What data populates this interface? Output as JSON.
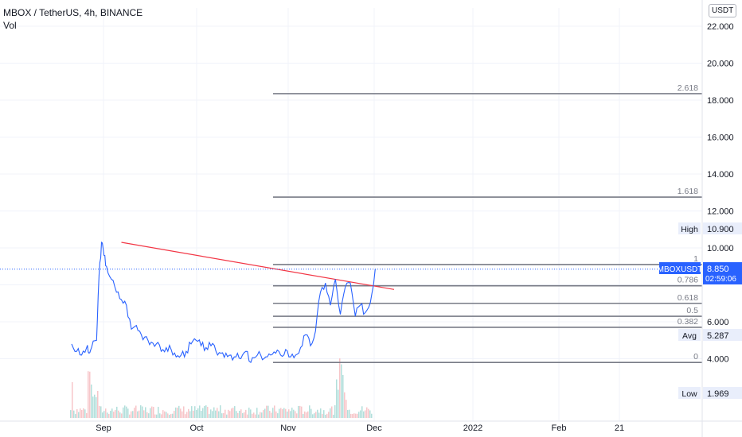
{
  "header": {
    "title": "MBOX / TetherUS, 4h, BINANCE",
    "indicator": "Vol"
  },
  "currency_button": "USDT",
  "colors": {
    "price_line": "#2962ff",
    "trendline": "#f23645",
    "fib_line": "#787b86",
    "current_price": "#2962ff",
    "volume_up": "#b2dfdb",
    "volume_down": "#f7c6c9"
  },
  "chart_data": {
    "type": "line",
    "title": "MBOX / TetherUS, 4h, BINANCE",
    "xlabel": "",
    "ylabel": "",
    "x_ticks": [
      "Sep",
      "Oct",
      "Nov",
      "Dec",
      "2022",
      "Feb",
      "21"
    ],
    "y_ticks": [
      "4.000",
      "6.000",
      "10.000",
      "12.000",
      "14.000",
      "16.000",
      "18.000",
      "20.000",
      "22.000"
    ],
    "ylim": [
      1.0,
      23.0
    ],
    "grid": true,
    "series": [
      {
        "values": [
          [
            0,
            4.8
          ],
          [
            1,
            4.4
          ],
          [
            2,
            4.2
          ],
          [
            3,
            4.6
          ],
          [
            3.5,
            4.3
          ],
          [
            4,
            4.6
          ],
          [
            5,
            5.0
          ],
          [
            5.5,
            8.5
          ],
          [
            6,
            10.3
          ],
          [
            6.5,
            9.6
          ],
          [
            7,
            9.0
          ],
          [
            8,
            8.3
          ],
          [
            9,
            7.6
          ],
          [
            10,
            7.2
          ],
          [
            11,
            6.9
          ],
          [
            12,
            5.6
          ],
          [
            13,
            5.8
          ],
          [
            14,
            5.3
          ],
          [
            15,
            5.2
          ],
          [
            16,
            4.9
          ],
          [
            17,
            4.8
          ],
          [
            18,
            4.4
          ],
          [
            19,
            4.6
          ],
          [
            20,
            4.5
          ],
          [
            21,
            4.1
          ],
          [
            22,
            4.2
          ],
          [
            23,
            4.4
          ],
          [
            24,
            4.8
          ],
          [
            25,
            5.0
          ],
          [
            26,
            4.7
          ],
          [
            27,
            4.6
          ],
          [
            28,
            4.7
          ],
          [
            29,
            4.4
          ],
          [
            30,
            4.3
          ],
          [
            31,
            4.3
          ],
          [
            32,
            4.2
          ],
          [
            33,
            4.1
          ],
          [
            34,
            4.0
          ],
          [
            35,
            4.4
          ],
          [
            36,
            3.8
          ],
          [
            37,
            4.1
          ],
          [
            38,
            4.2
          ],
          [
            39,
            4.1
          ],
          [
            40,
            4.2
          ],
          [
            41,
            4.3
          ],
          [
            42,
            4.2
          ],
          [
            43,
            4.5
          ],
          [
            44,
            4.1
          ],
          [
            45,
            4.2
          ],
          [
            46,
            4.6
          ],
          [
            47,
            5.3
          ],
          [
            48,
            4.7
          ],
          [
            49,
            5.5
          ],
          [
            50,
            7.6
          ],
          [
            51,
            8.1
          ],
          [
            52,
            6.9
          ],
          [
            53,
            8.3
          ],
          [
            54,
            6.4
          ],
          [
            55,
            7.9
          ],
          [
            56,
            8.1
          ],
          [
            57,
            6.3
          ],
          [
            58,
            6.9
          ],
          [
            59,
            6.5
          ],
          [
            60,
            7.0
          ],
          [
            61,
            8.85
          ]
        ]
      }
    ],
    "trendline": {
      "from": [
        6,
        10.3
      ],
      "to": [
        64,
        7.75
      ]
    },
    "fibonacci_levels": [
      {
        "label": "0",
        "value": 3.8
      },
      {
        "label": "0.382",
        "value": 5.7
      },
      {
        "label": "0.5",
        "value": 6.3
      },
      {
        "label": "0.618",
        "value": 7.0
      },
      {
        "label": "0.786",
        "value": 7.95
      },
      {
        "label": "1",
        "value": 9.1
      },
      {
        "label": "1.618",
        "value": 12.75
      },
      {
        "label": "2.618",
        "value": 18.35
      }
    ],
    "price_tags": [
      {
        "label": "High",
        "value": "10.900"
      },
      {
        "label": "MBOXUSDT",
        "value": "8.850",
        "sub": "02:59:06"
      },
      {
        "label": "Avg",
        "value": "5.287"
      },
      {
        "label": "Low",
        "value": "1.969"
      }
    ]
  }
}
